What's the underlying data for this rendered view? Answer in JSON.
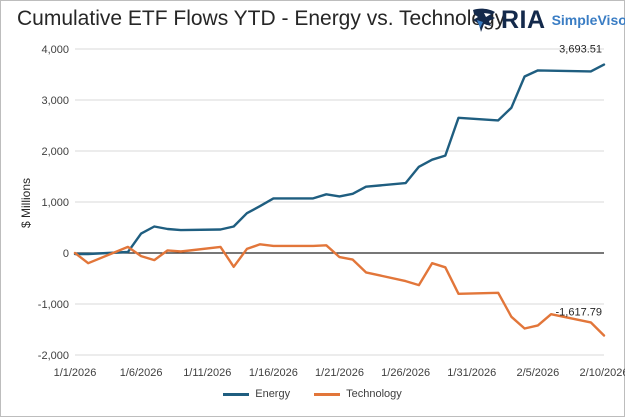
{
  "title": "Cumulative ETF Flows YTD - Energy vs. Technology",
  "brand": {
    "name": "RIA",
    "product": "SimpleVisor",
    "logo_icon": "eagle-icon"
  },
  "chart_data": {
    "type": "line",
    "title": "Cumulative ETF Flows YTD - Energy vs. Technology",
    "xlabel": "",
    "ylabel": "$ Millions",
    "ylim": [
      -2000,
      4000
    ],
    "yticks": [
      -2000,
      -1000,
      0,
      1000,
      2000,
      3000,
      4000
    ],
    "ytick_labels": [
      "-2,000",
      "-1,000",
      "0",
      "1,000",
      "2,000",
      "3,000",
      "4,000"
    ],
    "xlim": [
      "2026-01-01",
      "2026-02-10"
    ],
    "xtick_labels": [
      "1/1/2026",
      "1/6/2026",
      "1/11/2026",
      "1/16/2026",
      "1/21/2026",
      "1/26/2026",
      "1/31/2026",
      "2/5/2026",
      "2/10/2026"
    ],
    "grid": "horizontal",
    "legend": "bottom",
    "series": [
      {
        "name": "Energy",
        "color": "#1f5e80",
        "points": [
          [
            "2026-01-01",
            -20
          ],
          [
            "2026-01-02",
            -20
          ],
          [
            "2026-01-05",
            20
          ],
          [
            "2026-01-06",
            380
          ],
          [
            "2026-01-07",
            520
          ],
          [
            "2026-01-08",
            470
          ],
          [
            "2026-01-09",
            450
          ],
          [
            "2026-01-12",
            460
          ],
          [
            "2026-01-13",
            520
          ],
          [
            "2026-01-14",
            780
          ],
          [
            "2026-01-15",
            920
          ],
          [
            "2026-01-16",
            1070
          ],
          [
            "2026-01-19",
            1070
          ],
          [
            "2026-01-20",
            1150
          ],
          [
            "2026-01-21",
            1110
          ],
          [
            "2026-01-22",
            1160
          ],
          [
            "2026-01-23",
            1300
          ],
          [
            "2026-01-26",
            1370
          ],
          [
            "2026-01-27",
            1690
          ],
          [
            "2026-01-28",
            1830
          ],
          [
            "2026-01-29",
            1910
          ],
          [
            "2026-01-30",
            2650
          ],
          [
            "2026-02-02",
            2600
          ],
          [
            "2026-02-03",
            2850
          ],
          [
            "2026-02-04",
            3460
          ],
          [
            "2026-02-05",
            3580
          ],
          [
            "2026-02-09",
            3560
          ],
          [
            "2026-02-10",
            3693.51
          ]
        ],
        "end_label": "3,693.51"
      },
      {
        "name": "Technology",
        "color": "#e2763a",
        "points": [
          [
            "2026-01-01",
            0
          ],
          [
            "2026-01-02",
            -200
          ],
          [
            "2026-01-05",
            120
          ],
          [
            "2026-01-06",
            -60
          ],
          [
            "2026-01-07",
            -140
          ],
          [
            "2026-01-08",
            50
          ],
          [
            "2026-01-09",
            30
          ],
          [
            "2026-01-12",
            120
          ],
          [
            "2026-01-13",
            -270
          ],
          [
            "2026-01-14",
            80
          ],
          [
            "2026-01-15",
            170
          ],
          [
            "2026-01-16",
            140
          ],
          [
            "2026-01-19",
            140
          ],
          [
            "2026-01-20",
            150
          ],
          [
            "2026-01-21",
            -80
          ],
          [
            "2026-01-22",
            -130
          ],
          [
            "2026-01-23",
            -380
          ],
          [
            "2026-01-26",
            -550
          ],
          [
            "2026-01-27",
            -630
          ],
          [
            "2026-01-28",
            -200
          ],
          [
            "2026-01-29",
            -280
          ],
          [
            "2026-01-30",
            -800
          ],
          [
            "2026-02-02",
            -780
          ],
          [
            "2026-02-03",
            -1250
          ],
          [
            "2026-02-04",
            -1480
          ],
          [
            "2026-02-05",
            -1420
          ],
          [
            "2026-02-06",
            -1200
          ],
          [
            "2026-02-09",
            -1360
          ],
          [
            "2026-02-10",
            -1617.79
          ]
        ],
        "end_label": "-1,617.79"
      }
    ]
  }
}
